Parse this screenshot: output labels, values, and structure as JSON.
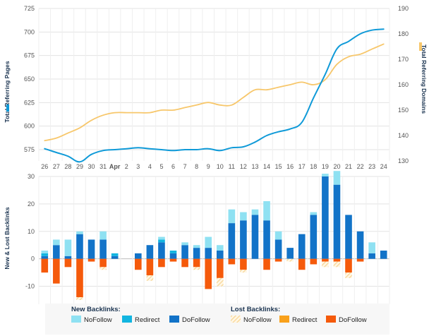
{
  "chart_data": [
    {
      "type": "line",
      "x": [
        "26",
        "27",
        "28",
        "29",
        "30",
        "31",
        "Apr",
        "2",
        "3",
        "4",
        "5",
        "6",
        "7",
        "8",
        "9",
        "10",
        "11",
        "12",
        "13",
        "14",
        "15",
        "16",
        "17",
        "18",
        "19",
        "20",
        "21",
        "22",
        "23",
        "24"
      ],
      "x_bold": [
        "Apr"
      ],
      "series": [
        {
          "name": "Total Referring Pages",
          "axis": "left",
          "color": "#0f9ad8",
          "values": [
            576,
            572,
            568,
            562,
            570,
            574,
            575,
            576,
            577,
            576,
            575,
            574,
            575,
            575,
            576,
            574,
            577,
            578,
            583,
            590,
            594,
            597,
            604,
            630,
            655,
            682,
            690,
            698,
            702,
            703
          ]
        },
        {
          "name": "Total Referring Domains",
          "axis": "right",
          "color": "#f7c76b",
          "values": [
            138,
            139,
            141,
            143,
            146,
            148,
            149,
            149,
            149,
            149,
            150,
            150,
            151,
            152,
            153,
            152,
            152,
            155,
            158,
            158,
            159,
            160,
            161,
            160,
            162,
            168,
            171,
            172,
            174,
            176
          ]
        }
      ],
      "y_left": {
        "label": "Total Referring Pages",
        "ticks": [
          575,
          600,
          625,
          650,
          675,
          700,
          725
        ],
        "range": [
          563,
          725
        ]
      },
      "y_right": {
        "label": "Total Referring Domains",
        "ticks": [
          130,
          140,
          150,
          160,
          170,
          180,
          190
        ],
        "range": [
          130,
          190
        ]
      },
      "grid": true
    },
    {
      "type": "bar",
      "stacked": true,
      "categories": [
        "26",
        "27",
        "28",
        "29",
        "30",
        "31",
        "Apr",
        "2",
        "3",
        "4",
        "5",
        "6",
        "7",
        "8",
        "9",
        "10",
        "11",
        "12",
        "13",
        "14",
        "15",
        "16",
        "17",
        "18",
        "19",
        "20",
        "21",
        "22",
        "23",
        "24"
      ],
      "y": {
        "label": "New & Lost Backlinks",
        "ticks": [
          -10,
          0,
          10,
          20,
          30
        ],
        "range": [
          -15,
          30
        ]
      },
      "series": [
        {
          "name": "NoFollow",
          "group": "New Backlinks",
          "color": "#8fe1f2",
          "values": [
            1,
            2,
            6,
            1,
            0,
            3,
            0,
            0,
            0,
            0,
            1,
            0,
            1,
            1,
            4,
            2,
            5,
            3,
            2,
            7,
            3,
            0,
            0,
            1,
            1,
            5,
            0,
            0,
            4,
            0
          ]
        },
        {
          "name": "Redirect",
          "group": "New Backlinks",
          "color": "#12b5e0",
          "values": [
            1,
            0,
            0,
            0,
            0,
            0,
            1,
            0,
            0,
            0,
            1,
            1,
            0,
            0,
            0,
            0,
            0,
            0,
            0,
            0,
            0,
            0,
            0,
            0,
            0,
            0,
            0,
            0,
            0,
            0
          ]
        },
        {
          "name": "DoFollow",
          "group": "New Backlinks",
          "color": "#1273c8",
          "values": [
            1,
            5,
            1,
            9,
            7,
            7,
            1,
            0,
            2,
            5,
            6,
            2,
            5,
            4,
            4,
            3,
            13,
            14,
            16,
            14,
            7,
            4,
            9,
            16,
            30,
            27,
            16,
            10,
            2,
            3
          ]
        },
        {
          "name": "NoFollow",
          "group": "Lost Backlinks",
          "color": "#fde3ad",
          "values": [
            0,
            0,
            0,
            -1,
            0,
            -1,
            0,
            0,
            0,
            -2,
            0,
            0,
            0,
            -1,
            0,
            -3,
            0,
            -1,
            0,
            0,
            0,
            -1,
            0,
            0,
            -2,
            -2,
            -2,
            0,
            0,
            0
          ]
        },
        {
          "name": "Redirect",
          "group": "Lost Backlinks",
          "color": "#f9a11b",
          "values": [
            0,
            0,
            0,
            0,
            0,
            0,
            0,
            0,
            0,
            0,
            0,
            0,
            0,
            0,
            0,
            0,
            0,
            0,
            0,
            0,
            0,
            0,
            0,
            0,
            0,
            0,
            0,
            0,
            0,
            0
          ]
        },
        {
          "name": "DoFollow",
          "group": "Lost Backlinks",
          "color": "#f55a0b",
          "values": [
            -5,
            -9,
            -3,
            -14,
            -1,
            -3,
            0,
            0,
            -4,
            -6,
            -3,
            -1,
            -3,
            -3,
            -11,
            -7,
            -2,
            -4,
            0,
            -4,
            -1,
            0,
            -4,
            -2,
            -1,
            -1,
            -5,
            -1,
            0,
            0
          ]
        }
      ],
      "grid": true
    }
  ],
  "legend": {
    "new_heading": "New Backlinks:",
    "lost_heading": "Lost Backlinks:",
    "new_items": [
      {
        "label": "NoFollow",
        "color": "#8fe1f2"
      },
      {
        "label": "Redirect",
        "color": "#12b5e0"
      },
      {
        "label": "DoFollow",
        "color": "#1273c8"
      }
    ],
    "lost_items": [
      {
        "label": "NoFollow",
        "color": "#fde3ad",
        "hatched": true
      },
      {
        "label": "Redirect",
        "color": "#f9a11b"
      },
      {
        "label": "DoFollow",
        "color": "#f55a0b"
      }
    ]
  }
}
